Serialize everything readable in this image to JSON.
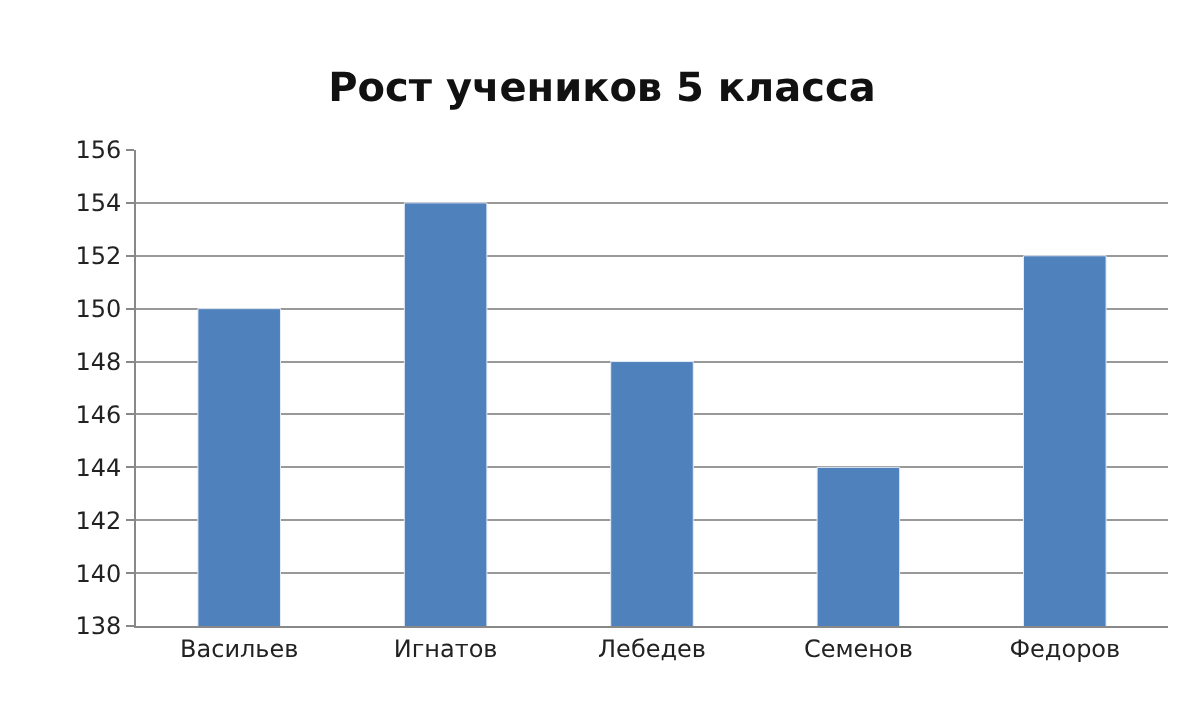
{
  "chart_data": {
    "type": "bar",
    "title": "Рост учеников 5 класса",
    "categories": [
      "Васильев",
      "Игнатов",
      "Лебедев",
      "Семенов",
      "Федоров"
    ],
    "values": [
      150,
      154,
      148,
      144,
      152
    ],
    "color": "#4f81bd",
    "ylim": [
      138,
      156
    ],
    "yticks": [
      138,
      140,
      142,
      144,
      146,
      148,
      150,
      152,
      154,
      156
    ],
    "grid": "y",
    "legend": false
  }
}
